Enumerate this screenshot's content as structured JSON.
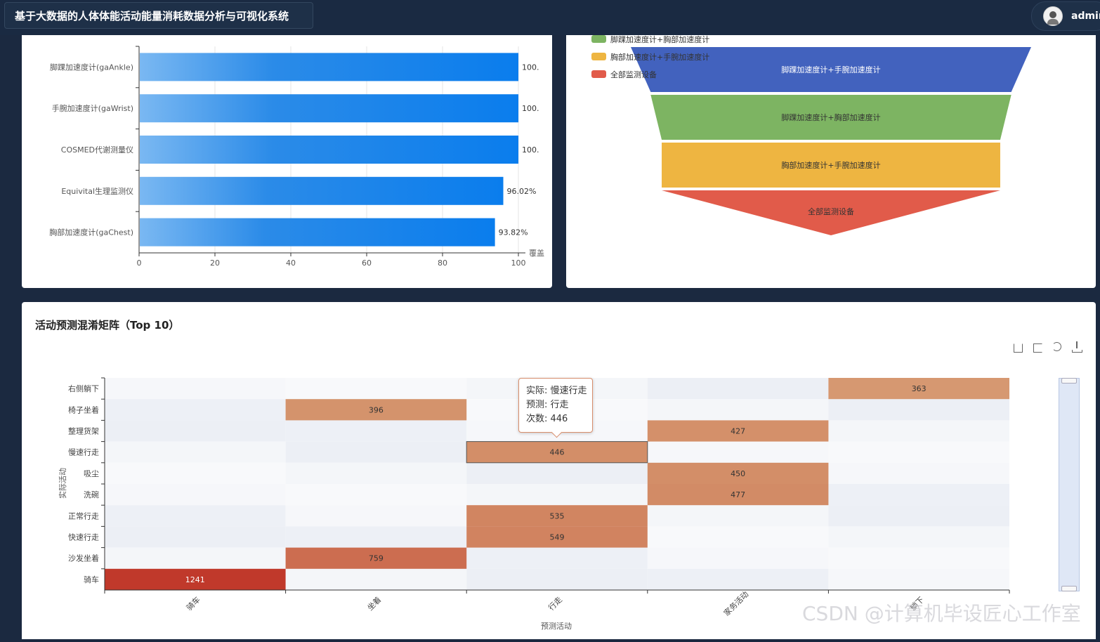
{
  "app": {
    "title": "基于大数据的人体体能活动能量消耗数据分析与可视化系统",
    "user": "admin"
  },
  "colors": {
    "bar": "#0a7ded",
    "funnel": [
      "#4262be",
      "#7db462",
      "#eeb541",
      "#e15b4a"
    ],
    "heat_low": "#f2f4f8",
    "heat_high": "#c0392b"
  },
  "device_chart": {
    "value_unit_label": "覆盖",
    "chart_data": {
      "type": "bar",
      "orientation": "horizontal",
      "categories": [
        "脚踝加速度计(gaAnkle)",
        "手腕加速度计(gaWrist)",
        "COSMED代谢测量仪",
        "Equivital生理监测仪",
        "胸部加速度计(gaChest)"
      ],
      "values": [
        100,
        100,
        100,
        96.02,
        93.82
      ],
      "value_labels": [
        "100.",
        "100.",
        "100.",
        "96.02%",
        "93.82%"
      ],
      "xlim": [
        0,
        100
      ],
      "xticks": [
        "0",
        "20",
        "40",
        "60",
        "80",
        "100"
      ]
    }
  },
  "funnel_chart": {
    "chart_data": {
      "type": "funnel",
      "legend": [
        "脚踝加速度计+胸部加速度计",
        "胸部加速度计+手腕加速度计",
        "全部监测设备"
      ],
      "stages": [
        {
          "name": "脚踝加速度计+手腕加速度计",
          "value": 100
        },
        {
          "name": "脚踝加速度计+胸部加速度计",
          "value": 96.02
        },
        {
          "name": "胸部加速度计+手腕加速度计",
          "value": 93.82
        },
        {
          "name": "全部监测设备",
          "value": 93.82
        }
      ]
    }
  },
  "confusion": {
    "title": "活动预测混淆矩阵（Top 10）",
    "tooltip": {
      "line1": "实际: 慢速行走",
      "line2": "预测: 行走",
      "line3": "次数: 446"
    },
    "chart_data": {
      "type": "heatmap",
      "ylabel": "实际活动",
      "xlabel": "预测活动",
      "x": [
        "骑车",
        "坐着",
        "行走",
        "家务活动",
        "躺下"
      ],
      "y": [
        "右侧躺下",
        "椅子坐着",
        "整理货架",
        "慢速行走",
        "吸尘",
        "洗碗",
        "正常行走",
        "快速行走",
        "沙发坐着",
        "骑车"
      ],
      "cells": [
        {
          "row": "右侧躺下",
          "col": "躺下",
          "value": 363
        },
        {
          "row": "椅子坐着",
          "col": "坐着",
          "value": 396
        },
        {
          "row": "整理货架",
          "col": "家务活动",
          "value": 427
        },
        {
          "row": "慢速行走",
          "col": "行走",
          "value": 446
        },
        {
          "row": "吸尘",
          "col": "家务活动",
          "value": 450
        },
        {
          "row": "洗碗",
          "col": "家务活动",
          "value": 477
        },
        {
          "row": "正常行走",
          "col": "行走",
          "value": 535
        },
        {
          "row": "快速行走",
          "col": "行走",
          "value": 549
        },
        {
          "row": "沙发坐着",
          "col": "坐着",
          "value": 759
        },
        {
          "row": "骑车",
          "col": "骑车",
          "value": 1241
        }
      ],
      "value_range": [
        0,
        1241
      ]
    }
  },
  "watermark": "CSDN @计算机毕设匠心工作室"
}
